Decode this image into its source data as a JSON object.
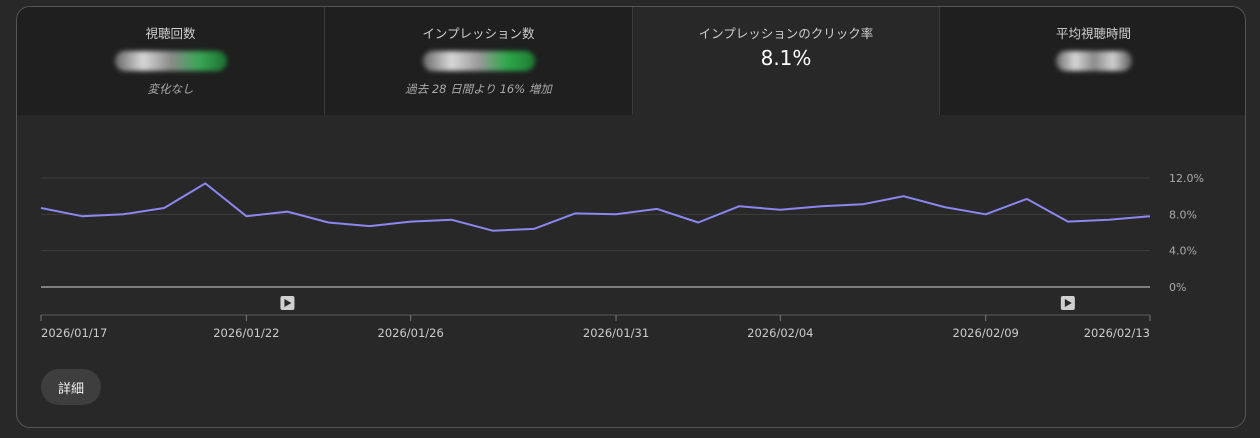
{
  "metrics": {
    "views": {
      "label": "視聴回数",
      "sub": "変化なし"
    },
    "impressions": {
      "label": "インプレッション数",
      "sub": "過去 28 日間より 16% 増加"
    },
    "ctr": {
      "label": "インプレッションのクリック率",
      "value": "8.1%"
    },
    "avg_watch": {
      "label": "平均視聴時間"
    }
  },
  "details_label": "詳細",
  "colors": {
    "line": "#8b87f0",
    "grid": "#3d3d3d",
    "axis": "#9a9a9a"
  },
  "chart_data": {
    "type": "line",
    "title": "",
    "xlabel": "",
    "ylabel": "",
    "ylim": [
      0,
      12
    ],
    "y_ticks": [
      "0%",
      "4.0%",
      "8.0%",
      "12.0%"
    ],
    "y_tick_values": [
      0,
      4,
      8,
      12
    ],
    "x": [
      "2026/01/17",
      "2026/01/18",
      "2026/01/19",
      "2026/01/20",
      "2026/01/21",
      "2026/01/22",
      "2026/01/23",
      "2026/01/24",
      "2026/01/25",
      "2026/01/26",
      "2026/01/27",
      "2026/01/28",
      "2026/01/29",
      "2026/01/30",
      "2026/01/31",
      "2026/02/01",
      "2026/02/02",
      "2026/02/03",
      "2026/02/04",
      "2026/02/05",
      "2026/02/06",
      "2026/02/07",
      "2026/02/08",
      "2026/02/09",
      "2026/02/10",
      "2026/02/11",
      "2026/02/12",
      "2026/02/13"
    ],
    "x_tick_labels": [
      "2026/01/17",
      "2026/01/22",
      "2026/01/26",
      "2026/01/31",
      "2026/02/04",
      "2026/02/09",
      "2026/02/13"
    ],
    "series": [
      {
        "values": [
          8.7,
          7.8,
          8.0,
          8.7,
          11.4,
          7.8,
          8.3,
          7.1,
          6.7,
          7.2,
          7.4,
          6.2,
          6.4,
          8.1,
          8.0,
          8.6,
          7.1,
          8.9,
          8.5,
          8.9,
          9.1,
          10.0,
          8.8,
          8.0,
          9.7,
          7.2,
          7.4,
          7.8
        ]
      }
    ],
    "markers": [
      "2026/01/23",
      "2026/02/11"
    ],
    "grid": true
  }
}
